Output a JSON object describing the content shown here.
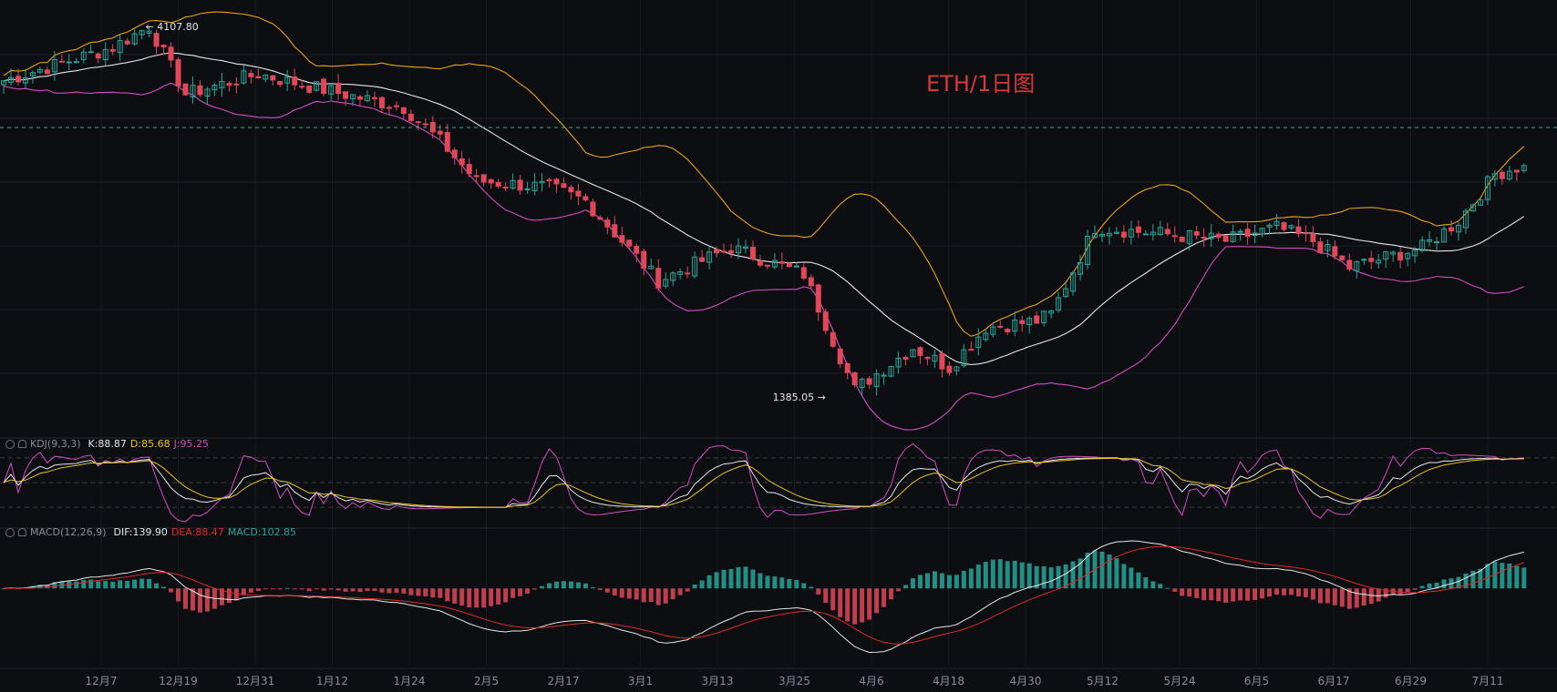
{
  "watermark": "ETH/1日图",
  "annotations": {
    "high": "← 4107.80",
    "low": "1385.05 →"
  },
  "kdj": {
    "name": "KDJ(9,3,3)",
    "k": "K:88.87",
    "d": "D:85.68",
    "j": "J:95.25"
  },
  "macd": {
    "name": "MACD(12,26,9)",
    "dif": "DIF:139.90",
    "dea": "DEA:88.47",
    "macd": "MACD:102.85"
  },
  "colors": {
    "up": "#26a69a",
    "down": "#e0485a",
    "upper_band": "#e8a317",
    "lower_band": "#d04fc0",
    "middle_band": "#e6e6e6",
    "d_line": "#e6c229",
    "dea": "#e02a2a",
    "background": "#0c0e12"
  },
  "chart_data": {
    "type": "candlestick",
    "x_ticks": [
      "12月7",
      "12月19",
      "12月31",
      "1月12",
      "1月24",
      "2月5",
      "2月17",
      "3月1",
      "3月13",
      "3月25",
      "4月6",
      "4月18",
      "4月30",
      "5月12",
      "5月24",
      "6月5",
      "6月17",
      "6月29",
      "7月11"
    ],
    "price_anchors": [
      {
        "i": 0,
        "v": 3700
      },
      {
        "i": 15,
        "v": 3950
      },
      {
        "i": 20,
        "v": 4107.8
      },
      {
        "i": 25,
        "v": 3600
      },
      {
        "i": 35,
        "v": 3750
      },
      {
        "i": 45,
        "v": 3620
      },
      {
        "i": 55,
        "v": 3500
      },
      {
        "i": 60,
        "v": 3250
      },
      {
        "i": 65,
        "v": 2950
      },
      {
        "i": 75,
        "v": 2900
      },
      {
        "i": 80,
        "v": 2800
      },
      {
        "i": 90,
        "v": 2200
      },
      {
        "i": 100,
        "v": 2450
      },
      {
        "i": 110,
        "v": 2250
      },
      {
        "i": 117,
        "v": 1385.05
      },
      {
        "i": 125,
        "v": 1700
      },
      {
        "i": 130,
        "v": 1550
      },
      {
        "i": 135,
        "v": 1850
      },
      {
        "i": 142,
        "v": 1900
      },
      {
        "i": 144,
        "v": 1950
      },
      {
        "i": 150,
        "v": 2600
      },
      {
        "i": 160,
        "v": 2550
      },
      {
        "i": 168,
        "v": 2500
      },
      {
        "i": 175,
        "v": 2600
      },
      {
        "i": 180,
        "v": 2500
      },
      {
        "i": 185,
        "v": 2300
      },
      {
        "i": 195,
        "v": 2450
      },
      {
        "i": 200,
        "v": 2650
      },
      {
        "i": 205,
        "v": 3000
      },
      {
        "i": 208,
        "v": 3050
      }
    ],
    "price_range": [
      1200,
      4250
    ],
    "kdj_range": [
      -20,
      120
    ],
    "macd_range": [
      -320,
      220
    ],
    "indicators": [
      "BOLL(20,2)",
      "KDJ(9,3,3)",
      "MACD(12,26,9)"
    ]
  }
}
